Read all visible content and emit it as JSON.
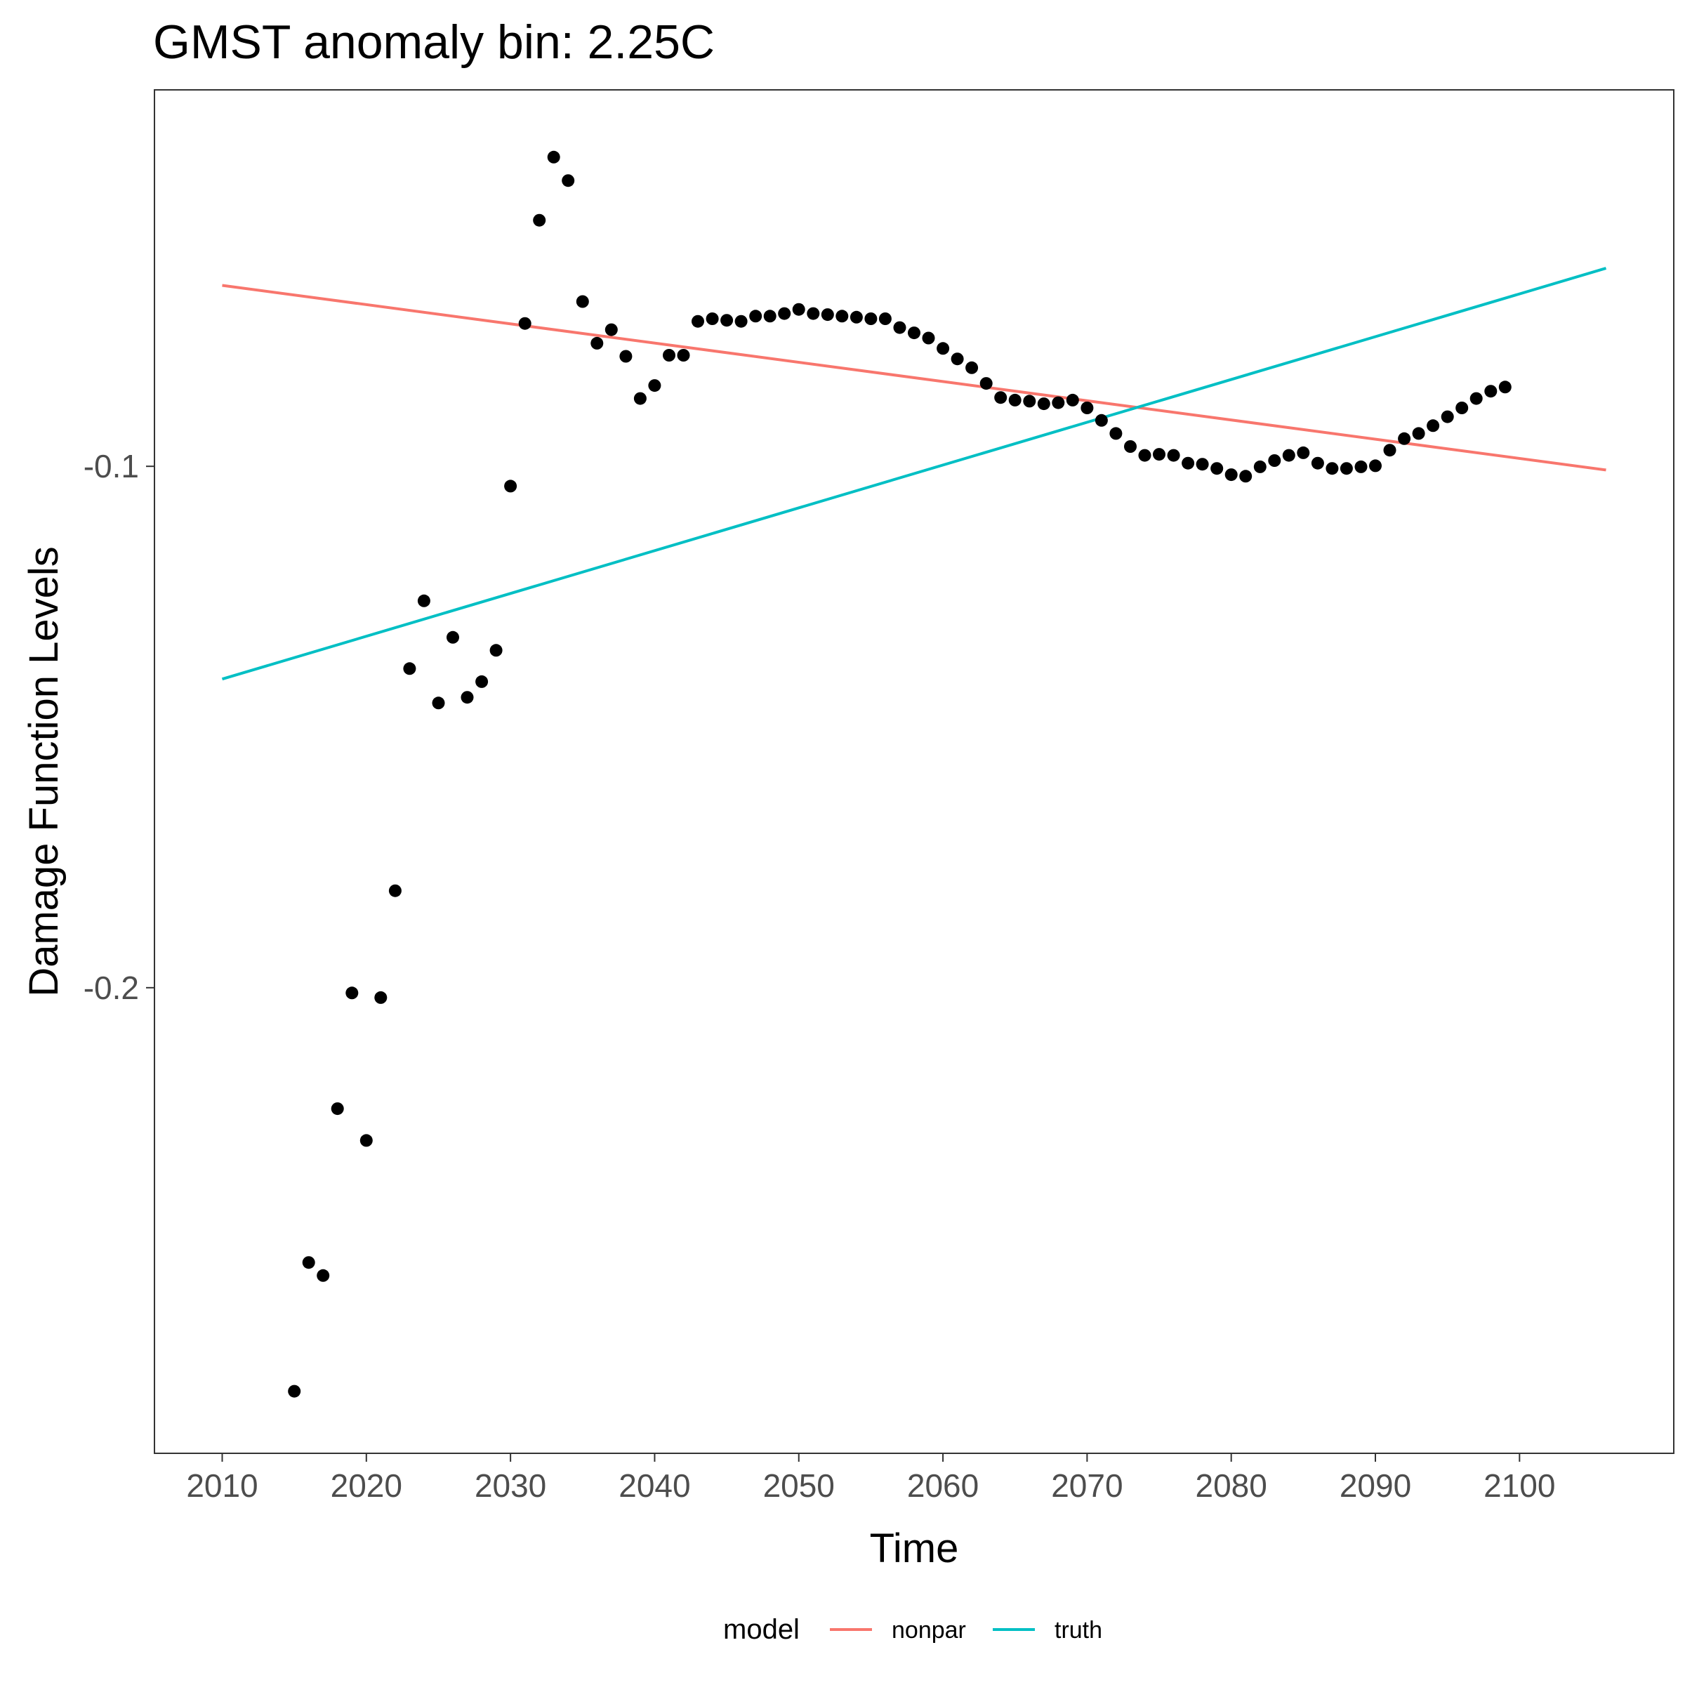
{
  "chart_data": {
    "type": "scatter",
    "title": "GMST anomaly bin: 2.25C",
    "xlabel": "Time",
    "ylabel": "Damage Function Levels",
    "xlim": [
      2005.3,
      2110.7
    ],
    "ylim": [
      -0.2893,
      -0.0278
    ],
    "x_ticks": [
      2010,
      2020,
      2030,
      2040,
      2050,
      2060,
      2070,
      2080,
      2090,
      2100
    ],
    "x_tick_labels": [
      "2010",
      "2020",
      "2030",
      "2040",
      "2050",
      "2060",
      "2070",
      "2080",
      "2090",
      "2100"
    ],
    "y_ticks": [
      -0.2,
      -0.1
    ],
    "y_tick_labels": [
      "-0.2",
      "-0.1"
    ],
    "grid": false,
    "legend": {
      "title": "model",
      "position": "bottom",
      "entries": [
        {
          "label": "nonpar",
          "color": "#F8766D"
        },
        {
          "label": "truth",
          "color": "#00BFC4"
        }
      ]
    },
    "points": {
      "color": "#000000",
      "x": [
        2015,
        2016,
        2017,
        2018,
        2019,
        2020,
        2021,
        2022,
        2023,
        2024,
        2025,
        2026,
        2027,
        2028,
        2029,
        2030,
        2031,
        2032,
        2033,
        2034,
        2035,
        2036,
        2037,
        2038,
        2039,
        2040,
        2041,
        2042,
        2043,
        2044,
        2045,
        2046,
        2047,
        2048,
        2049,
        2050,
        2051,
        2052,
        2053,
        2054,
        2055,
        2056,
        2057,
        2058,
        2059,
        2060,
        2061,
        2062,
        2063,
        2064,
        2065,
        2066,
        2067,
        2068,
        2069,
        2070,
        2071,
        2072,
        2073,
        2074,
        2075,
        2076,
        2077,
        2078,
        2079,
        2080,
        2081,
        2082,
        2083,
        2084,
        2085,
        2086,
        2087,
        2088,
        2089,
        2090,
        2091,
        2092,
        2093,
        2094,
        2095,
        2096,
        2097,
        2098,
        2099
      ],
      "y": [
        -0.2774,
        -0.2527,
        -0.2552,
        -0.2232,
        -0.201,
        -0.2293,
        -0.2019,
        -0.1814,
        -0.1388,
        -0.1258,
        -0.1454,
        -0.1328,
        -0.1443,
        -0.1413,
        -0.1353,
        -0.1038,
        -0.0726,
        -0.0528,
        -0.0407,
        -0.0452,
        -0.0684,
        -0.0764,
        -0.0738,
        -0.0789,
        -0.087,
        -0.0845,
        -0.0787,
        -0.0787,
        -0.0722,
        -0.0717,
        -0.072,
        -0.0722,
        -0.0712,
        -0.0712,
        -0.0707,
        -0.0699,
        -0.0707,
        -0.0709,
        -0.0712,
        -0.0714,
        -0.0717,
        -0.0717,
        -0.0734,
        -0.0744,
        -0.0754,
        -0.0774,
        -0.0794,
        -0.0811,
        -0.0841,
        -0.0868,
        -0.0873,
        -0.0875,
        -0.088,
        -0.0878,
        -0.0873,
        -0.0888,
        -0.0912,
        -0.0937,
        -0.0962,
        -0.0979,
        -0.0977,
        -0.0979,
        -0.0994,
        -0.0996,
        -0.1004,
        -0.1016,
        -0.1019,
        -0.1001,
        -0.0989,
        -0.0979,
        -0.0974,
        -0.0994,
        -0.1004,
        -0.1004,
        -0.1001,
        -0.0999,
        -0.0969,
        -0.0947,
        -0.0937,
        -0.0922,
        -0.0905,
        -0.0888,
        -0.087,
        -0.0856,
        -0.0848
      ]
    },
    "series": [
      {
        "name": "nonpar",
        "color": "#F8766D",
        "x": [
          2010,
          2106
        ],
        "y": [
          -0.0653,
          -0.1007
        ]
      },
      {
        "name": "truth",
        "color": "#00BFC4",
        "x": [
          2010,
          2106
        ],
        "y": [
          -0.1408,
          -0.062
        ]
      }
    ]
  }
}
